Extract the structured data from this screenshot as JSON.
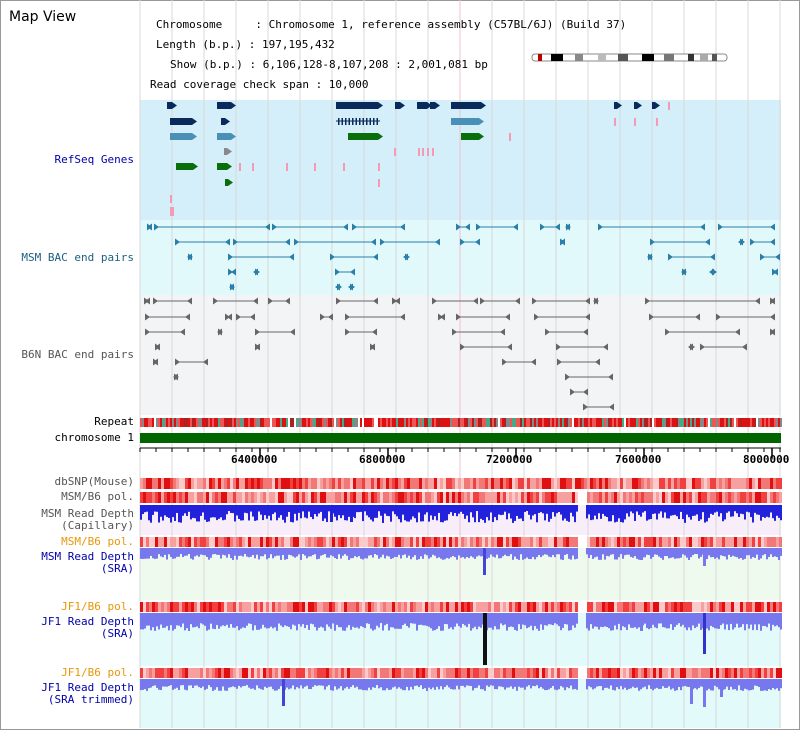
{
  "title": "Map View",
  "info": {
    "line1": "Chromosome     : Chromosome 1, reference assembly (C57BL/6J) (Build 37)",
    "line2": "Length (b.p.) : 197,195,432",
    "line3": "Show (b.p.) : 6,106,128-8,107,208 : 2,001,081 bp",
    "line4": "Read coverage check span : 10,000"
  },
  "tracks": {
    "refseq": "RefSeq Genes",
    "msm_bac": "MSM BAC end pairs",
    "b6n_bac": "B6N BAC end pairs",
    "repeat": "Repeat",
    "chromosome": "chromosome 1",
    "dbsnp": "dbSNP(Mouse)",
    "msm_b6_pol": "MSM/B6 pol.",
    "msm_depth_cap_1": "MSM Read Depth",
    "msm_depth_cap_2": "(Capillary)",
    "msm_b6_pol2": "MSM/B6 pol.",
    "msm_depth_sra_1": "MSM Read Depth",
    "msm_depth_sra_2": "(SRA)",
    "jf1_b6_pol": "JF1/B6 pol.",
    "jf1_depth_sra_1": "JF1 Read Depth",
    "jf1_depth_sra_2": "(SRA)",
    "jf1_b6_pol2": "JF1/B6 pol.",
    "jf1_depth_trim_1": "JF1 Read Depth",
    "jf1_depth_trim_2": "(SRA trimmed)"
  },
  "axis": {
    "ticks": [
      "6400000",
      "6800000",
      "7200000",
      "7600000",
      "8000000"
    ]
  },
  "colors": {
    "refseq_bg": "#d4eefa",
    "msm_bg": "#e2f9fb",
    "b6n_bg": "#f2f4f6",
    "chrom_bar": "#006400",
    "depth_blue": "#1a1aee",
    "depth_light": "#7777ee",
    "pol_red": "#f08080",
    "pink_bg": "#f8eefa",
    "green_bg": "#eefaee",
    "cyan_bg": "#e2fafa"
  }
}
